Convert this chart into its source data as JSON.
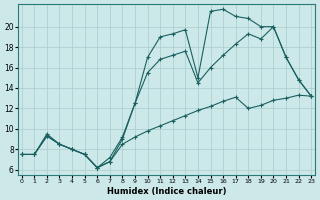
{
  "xlabel": "Humidex (Indice chaleur)",
  "bg_color": "#cce8e8",
  "grid_color": "#a8cccc",
  "line_color": "#1a6060",
  "x_ticks": [
    0,
    1,
    2,
    3,
    4,
    5,
    6,
    7,
    8,
    9,
    10,
    11,
    12,
    13,
    14,
    15,
    16,
    17,
    18,
    19,
    20,
    21,
    22,
    23
  ],
  "y_ticks": [
    6,
    8,
    10,
    12,
    14,
    16,
    18,
    20
  ],
  "xlim": [
    -0.3,
    23.3
  ],
  "ylim": [
    5.5,
    22.2
  ],
  "series": [
    {
      "x": [
        0,
        1,
        2,
        3,
        4,
        5,
        6,
        7,
        8,
        9,
        10,
        11,
        12,
        13,
        14,
        15,
        16,
        17,
        18,
        19,
        20,
        21,
        22,
        23
      ],
      "y": [
        7.5,
        7.5,
        9.5,
        8.5,
        8.0,
        7.5,
        6.2,
        6.8,
        9.0,
        12.5,
        17.0,
        19.0,
        19.3,
        19.7,
        15.0,
        21.5,
        21.7,
        21.0,
        20.8,
        20.0,
        20.0,
        17.0,
        14.8,
        13.2
      ]
    },
    {
      "x": [
        0,
        1,
        2,
        3,
        4,
        5,
        6,
        7,
        8,
        9,
        10,
        11,
        12,
        13,
        14,
        15,
        16,
        17,
        18,
        19,
        20,
        21,
        22,
        23
      ],
      "y": [
        7.5,
        7.5,
        9.3,
        8.5,
        8.0,
        7.5,
        6.2,
        7.2,
        9.2,
        12.5,
        15.5,
        16.8,
        17.2,
        17.6,
        14.5,
        16.0,
        17.2,
        18.3,
        19.3,
        18.8,
        20.0,
        17.0,
        14.8,
        13.2
      ]
    },
    {
      "x": [
        0,
        1,
        2,
        3,
        4,
        5,
        6,
        7,
        8,
        9,
        10,
        11,
        12,
        13,
        14,
        15,
        16,
        17,
        18,
        19,
        20,
        21,
        22,
        23
      ],
      "y": [
        7.5,
        7.5,
        9.3,
        8.5,
        8.0,
        7.5,
        6.2,
        6.8,
        8.5,
        9.2,
        9.8,
        10.3,
        10.8,
        11.3,
        11.8,
        12.2,
        12.7,
        13.1,
        12.0,
        12.3,
        12.8,
        13.0,
        13.3,
        13.2
      ]
    }
  ]
}
